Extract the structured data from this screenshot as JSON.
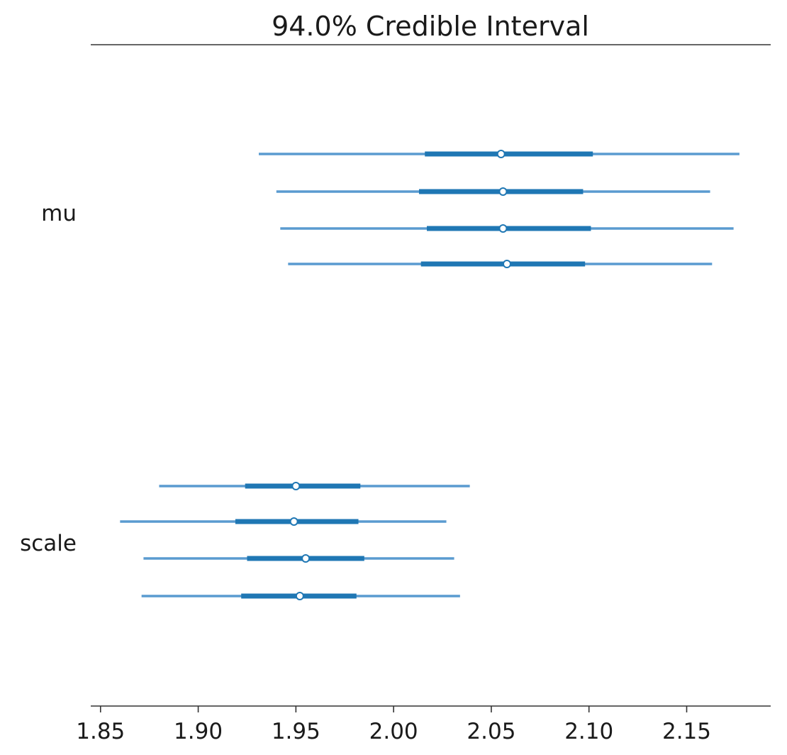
{
  "chart_data": {
    "type": "forest",
    "title": "94.0% Credible Interval",
    "xlabel": "",
    "ylabel": "",
    "xlim": [
      1.845,
      2.193
    ],
    "x_ticks": [
      1.85,
      1.9,
      1.95,
      2.0,
      2.05,
      2.1,
      2.15
    ],
    "x_tick_labels": [
      "1.85",
      "1.90",
      "1.95",
      "2.00",
      "2.05",
      "2.10",
      "2.15"
    ],
    "grid": false,
    "line_color": "#5a9bd0",
    "box_color": "#1f77b4",
    "point_fill": "#ffffff",
    "variables": [
      {
        "name": "mu",
        "chains": [
          {
            "hdi_low": 1.931,
            "hdi_high": 2.177,
            "q25": 2.016,
            "q75": 2.102,
            "median": 2.055
          },
          {
            "hdi_low": 1.94,
            "hdi_high": 2.162,
            "q25": 2.013,
            "q75": 2.097,
            "median": 2.056
          },
          {
            "hdi_low": 1.942,
            "hdi_high": 2.174,
            "q25": 2.017,
            "q75": 2.101,
            "median": 2.056
          },
          {
            "hdi_low": 1.946,
            "hdi_high": 2.163,
            "q25": 2.014,
            "q75": 2.098,
            "median": 2.058
          }
        ]
      },
      {
        "name": "scale",
        "chains": [
          {
            "hdi_low": 1.88,
            "hdi_high": 2.039,
            "q25": 1.924,
            "q75": 1.983,
            "median": 1.95
          },
          {
            "hdi_low": 1.86,
            "hdi_high": 2.027,
            "q25": 1.919,
            "q75": 1.982,
            "median": 1.949
          },
          {
            "hdi_low": 1.872,
            "hdi_high": 2.031,
            "q25": 1.925,
            "q75": 1.985,
            "median": 1.955
          },
          {
            "hdi_low": 1.871,
            "hdi_high": 2.034,
            "q25": 1.922,
            "q75": 1.981,
            "median": 1.952
          }
        ]
      }
    ]
  }
}
